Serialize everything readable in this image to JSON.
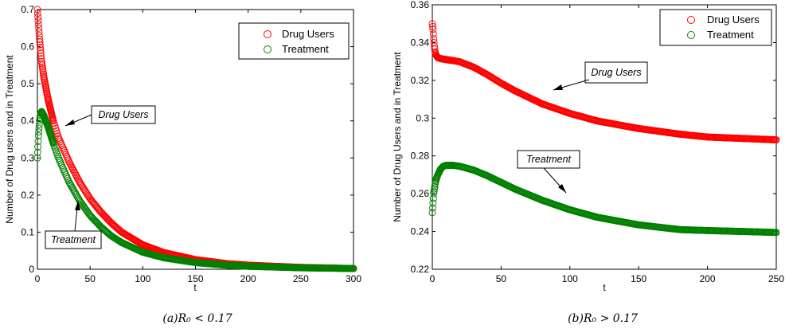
{
  "chart_data": [
    {
      "type": "scatter",
      "caption": "(a)R₀ < 0.17",
      "xlabel": "t",
      "ylabel": "Number of Drug users and in Treatment",
      "xlim": [
        0,
        300
      ],
      "ylim": [
        0,
        0.7
      ],
      "xticks": [
        "0",
        "50",
        "100",
        "150",
        "200",
        "250",
        "300"
      ],
      "yticks": [
        "0",
        "0.1",
        "0.2",
        "0.3",
        "0.4",
        "0.5",
        "0.6",
        "0.7"
      ],
      "legend_position": "top-right",
      "legend": [
        "Drug Users",
        "Treatment"
      ],
      "annotations": [
        {
          "text": "Drug Users",
          "arrow_to": [
            25,
            0.38
          ]
        },
        {
          "text": "Treatment",
          "arrow_to": [
            40,
            0.2
          ]
        }
      ],
      "series": [
        {
          "name": "Drug Users",
          "color": "#ff0000",
          "x": [
            0,
            1,
            2,
            3,
            4,
            6,
            8,
            10,
            15,
            20,
            30,
            40,
            50,
            60,
            70,
            80,
            100,
            120,
            150,
            180,
            200,
            250,
            300
          ],
          "y": [
            0.7,
            0.66,
            0.62,
            0.59,
            0.56,
            0.52,
            0.49,
            0.46,
            0.4,
            0.355,
            0.29,
            0.235,
            0.19,
            0.155,
            0.125,
            0.1,
            0.066,
            0.045,
            0.026,
            0.015,
            0.011,
            0.005,
            0.002
          ]
        },
        {
          "name": "Treatment",
          "color": "#008000",
          "x": [
            0,
            1,
            2,
            3,
            4,
            5,
            6,
            8,
            10,
            15,
            20,
            30,
            40,
            50,
            60,
            70,
            80,
            100,
            120,
            150,
            180,
            200,
            250,
            300
          ],
          "y": [
            0.3,
            0.36,
            0.4,
            0.42,
            0.425,
            0.42,
            0.415,
            0.4,
            0.385,
            0.34,
            0.3,
            0.235,
            0.185,
            0.145,
            0.115,
            0.09,
            0.072,
            0.046,
            0.031,
            0.018,
            0.011,
            0.008,
            0.004,
            0.002
          ]
        }
      ]
    },
    {
      "type": "scatter",
      "caption": "(b)R₀ > 0.17",
      "xlabel": "t",
      "ylabel": "Number of Drug Users and in Treatment",
      "xlim": [
        0,
        250
      ],
      "ylim": [
        0.22,
        0.36
      ],
      "xticks": [
        "0",
        "50",
        "100",
        "150",
        "200",
        "250"
      ],
      "yticks": [
        "0.22",
        "0.24",
        "0.26",
        "0.28",
        "0.3",
        "0.32",
        "0.34",
        "0.36"
      ],
      "legend_position": "top-right",
      "legend": [
        "Drug Users",
        "Treatment"
      ],
      "annotations": [
        {
          "text": "Drug Users",
          "arrow_to": [
            88,
            0.313
          ]
        },
        {
          "text": "Treatment",
          "arrow_to": [
            98,
            0.257
          ]
        }
      ],
      "series": [
        {
          "name": "Drug Users",
          "color": "#ff0000",
          "x": [
            0,
            0.5,
            1,
            1.5,
            2,
            3,
            4,
            6,
            10,
            15,
            20,
            30,
            40,
            50,
            60,
            80,
            100,
            120,
            150,
            180,
            200,
            250
          ],
          "y": [
            0.35,
            0.347,
            0.342,
            0.338,
            0.335,
            0.333,
            0.332,
            0.3315,
            0.331,
            0.3305,
            0.3298,
            0.327,
            0.323,
            0.3185,
            0.3145,
            0.3075,
            0.3025,
            0.2985,
            0.2945,
            0.2915,
            0.29,
            0.2885
          ]
        },
        {
          "name": "Treatment",
          "color": "#008000",
          "x": [
            0,
            0.5,
            1,
            2,
            3,
            4,
            6,
            8,
            10,
            15,
            20,
            30,
            40,
            50,
            60,
            80,
            100,
            120,
            150,
            180,
            200,
            250
          ],
          "y": [
            0.25,
            0.255,
            0.26,
            0.265,
            0.268,
            0.27,
            0.273,
            0.2745,
            0.275,
            0.275,
            0.2745,
            0.2725,
            0.2695,
            0.266,
            0.2625,
            0.2565,
            0.2515,
            0.2475,
            0.2435,
            0.241,
            0.2405,
            0.2395
          ]
        }
      ]
    }
  ]
}
